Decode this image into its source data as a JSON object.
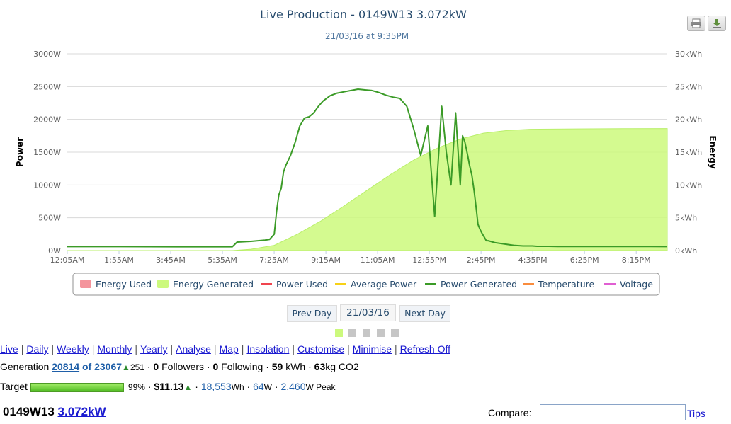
{
  "chart_data": {
    "type": "line",
    "title": "Live Production - 0149W13 3.072kW",
    "subtitle": "21/03/16 at 9:35PM",
    "y_left": {
      "label": "Power",
      "ticks": [
        "0W",
        "500W",
        "1000W",
        "1500W",
        "2000W",
        "2500W",
        "3000W"
      ],
      "range": [
        0,
        3000
      ]
    },
    "y_right": {
      "label": "Energy",
      "ticks": [
        "0kWh",
        "5kWh",
        "10kWh",
        "15kWh",
        "20kWh",
        "25kWh",
        "30kWh"
      ],
      "range": [
        0,
        30
      ]
    },
    "x_ticks": [
      "12:05AM",
      "1:55AM",
      "3:45AM",
      "5:35AM",
      "7:25AM",
      "9:15AM",
      "11:05AM",
      "12:55PM",
      "2:45PM",
      "4:35PM",
      "6:25PM",
      "8:15PM"
    ],
    "x_range_minutes": [
      5,
      1295
    ],
    "grid": true,
    "legend_position": "bottom",
    "legend": [
      {
        "name": "Energy Used",
        "color": "#f4949c",
        "kind": "area"
      },
      {
        "name": "Energy Generated",
        "color": "#ccf97d",
        "kind": "area"
      },
      {
        "name": "Power Used",
        "color": "#f0444e",
        "kind": "line"
      },
      {
        "name": "Average Power",
        "color": "#f7d117",
        "kind": "line"
      },
      {
        "name": "Power Generated",
        "color": "#3b9b27",
        "kind": "line"
      },
      {
        "name": "Temperature",
        "color": "#f98c3d",
        "kind": "line"
      },
      {
        "name": "Voltage",
        "color": "#e05ed2",
        "kind": "line"
      }
    ],
    "series": [
      {
        "name": "Power Generated",
        "axis": "left",
        "x": [
          5,
          120,
          240,
          360,
          370,
          400,
          430,
          440,
          450,
          455,
          460,
          465,
          470,
          475,
          485,
          495,
          505,
          515,
          525,
          535,
          545,
          555,
          570,
          585,
          600,
          615,
          630,
          645,
          660,
          675,
          690,
          705,
          720,
          735,
          750,
          765,
          780,
          795,
          810,
          820,
          830,
          840,
          850,
          855,
          860,
          863,
          866,
          870,
          875,
          880,
          885,
          888,
          892,
          897,
          902,
          906,
          910,
          915,
          925,
          945,
          965,
          985,
          1005,
          1015,
          1025,
          1040,
          1060,
          1100,
          1150,
          1200,
          1260,
          1295
        ],
        "y": [
          60,
          60,
          58,
          58,
          130,
          140,
          160,
          170,
          250,
          600,
          850,
          950,
          1200,
          1300,
          1450,
          1650,
          1900,
          2020,
          2040,
          2100,
          2200,
          2280,
          2360,
          2400,
          2420,
          2440,
          2460,
          2450,
          2440,
          2410,
          2370,
          2340,
          2320,
          2200,
          1850,
          1450,
          1900,
          520,
          2200,
          1500,
          1000,
          2100,
          1000,
          1750,
          1650,
          1550,
          1450,
          1300,
          1150,
          900,
          600,
          400,
          330,
          260,
          200,
          150,
          150,
          140,
          120,
          100,
          80,
          70,
          70,
          65,
          65,
          65,
          62,
          62,
          62,
          62,
          62,
          60
        ]
      },
      {
        "name": "Energy Generated",
        "axis": "right",
        "x": [
          5,
          360,
          400,
          450,
          500,
          550,
          600,
          650,
          700,
          750,
          800,
          850,
          900,
          950,
          1000,
          1100,
          1200,
          1295
        ],
        "y": [
          0,
          0,
          0.2,
          0.8,
          2.5,
          4.5,
          6.8,
          9.2,
          11.6,
          13.8,
          15.6,
          17,
          17.9,
          18.3,
          18.5,
          18.55,
          18.58,
          18.6
        ]
      }
    ]
  },
  "toolbar": {
    "print_icon": "printer-icon",
    "export_icon": "download-icon"
  },
  "navigation": {
    "prev_label": "Prev Day",
    "date_label": "21/03/16",
    "next_label": "Next Day",
    "page_count": 5,
    "active_page": 1
  },
  "menu": [
    "Live",
    "Daily",
    "Weekly",
    "Monthly",
    "Yearly",
    "Analyse",
    "Map",
    "Insolation",
    "Customise",
    "Minimise",
    "Refresh Off"
  ],
  "stats": {
    "generation_label": "Generation",
    "rank": "20814",
    "of_total": "of 23067",
    "rank_change": "251",
    "followers_count": "0",
    "followers_label": "Followers",
    "following_count": "0",
    "following_label": "Following",
    "kwh_value": "59",
    "kwh_unit": "kWh",
    "co2_value": "63",
    "co2_unit": "kg CO2"
  },
  "target": {
    "label": "Target",
    "fill_fraction": 0.99,
    "percent": "99%",
    "money": "$11.13",
    "wh_value": "18,553",
    "wh_unit": "Wh",
    "w_value": "64",
    "w_unit": "W",
    "peak_value": "2,460",
    "peak_unit": "W Peak"
  },
  "system": {
    "name": "0149W13",
    "size": "3.072kW"
  },
  "compare": {
    "label": "Compare:",
    "value": "",
    "tips": "Tips"
  }
}
